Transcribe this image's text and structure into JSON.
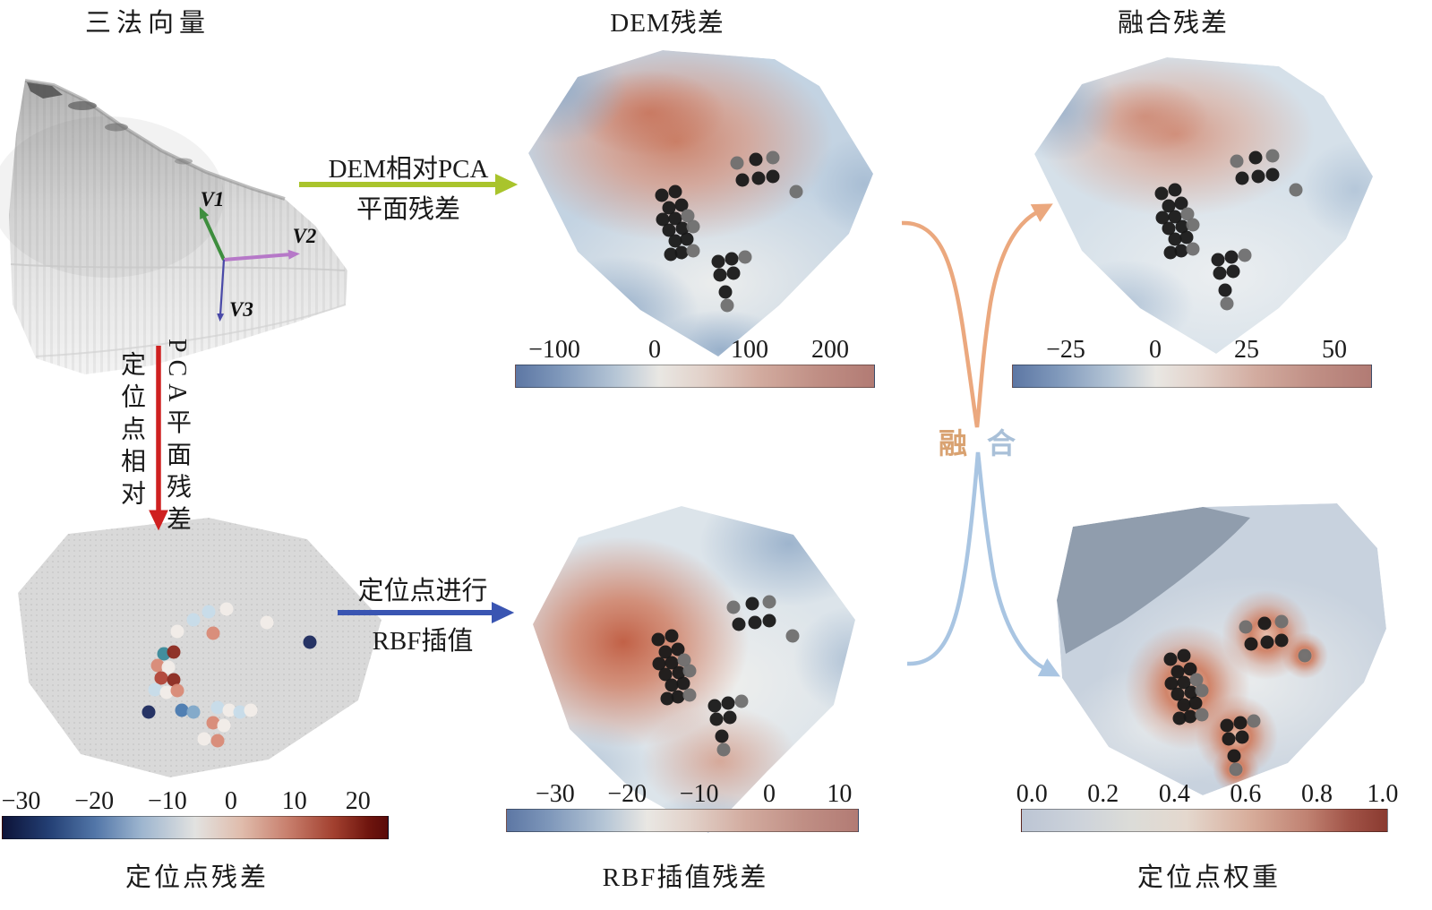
{
  "figure": {
    "titles": {
      "normal_vectors": "三法向量",
      "dem_residual": "DEM残差",
      "fusion_residual": "融合残差"
    },
    "captions": {
      "anchor_residual": "定位点残差",
      "rbf_residual": "RBF插值残差",
      "anchor_weight": "定位点权重"
    },
    "vector_labels": {
      "v1": "V1",
      "v2": "V2",
      "v3": "V3"
    },
    "flow_labels": {
      "dem_pca_line1": "DEM相对PCA",
      "dem_pca_line2": "平面残差",
      "anchor_pca_left": "定位点相对",
      "anchor_pca_right": "PCA平面残差",
      "rbf_line1": "定位点进行",
      "rbf_line2": "RBF插值",
      "fusion_left": "融",
      "fusion_right": "合"
    },
    "colors": {
      "dem_arrow": "#a9c42c",
      "anchor_arrow": "#cf2020",
      "rbf_arrow": "#3a55b2",
      "fusion_arrow_top": "#eba87e",
      "fusion_arrow_bottom": "#a9c5e2",
      "v1": "#3e8e3e",
      "v2": "#b678c8",
      "v3": "#4949a8"
    }
  },
  "colorbars": {
    "dem": {
      "ticks": [
        {
          "label": "−100",
          "x": 11
        },
        {
          "label": "0",
          "x": 39
        },
        {
          "label": "100",
          "x": 65.5
        },
        {
          "label": "200",
          "x": 88
        }
      ]
    },
    "fusion": {
      "ticks": [
        {
          "label": "−25",
          "x": 15
        },
        {
          "label": "0",
          "x": 40
        },
        {
          "label": "25",
          "x": 65.5
        },
        {
          "label": "50",
          "x": 90
        }
      ]
    },
    "anchor": {
      "ticks": [
        {
          "label": "−30",
          "x": 5
        },
        {
          "label": "−20",
          "x": 24
        },
        {
          "label": "−10",
          "x": 43
        },
        {
          "label": "0",
          "x": 59.5
        },
        {
          "label": "10",
          "x": 76
        },
        {
          "label": "20",
          "x": 92.5
        }
      ]
    },
    "rbf": {
      "ticks": [
        {
          "label": "−30",
          "x": 14
        },
        {
          "label": "−20",
          "x": 34.5
        },
        {
          "label": "−10",
          "x": 55
        },
        {
          "label": "0",
          "x": 75
        },
        {
          "label": "10",
          "x": 95
        }
      ]
    },
    "weight": {
      "ticks": [
        {
          "label": "0.0",
          "x": 3
        },
        {
          "label": "0.2",
          "x": 22.5
        },
        {
          "label": "0.4",
          "x": 42
        },
        {
          "label": "0.6",
          "x": 61.5
        },
        {
          "label": "0.8",
          "x": 81
        },
        {
          "label": "1.0",
          "x": 99
        }
      ]
    }
  },
  "palette": [
    "#181818",
    "#6f6f6f",
    "#c7dcea",
    "#f2ede9",
    "#d98a76",
    "#8c2a20",
    "#1c2a5e",
    "#4a7ab0",
    "#7fa8c9",
    "#3a8a9a",
    "#b24438"
  ],
  "anchors": [
    [
      253,
      136,
      1
    ],
    [
      274,
      132,
      0
    ],
    [
      293,
      130,
      1
    ],
    [
      259,
      155,
      0
    ],
    [
      277,
      153,
      0
    ],
    [
      293,
      151,
      0
    ],
    [
      319,
      168,
      1
    ],
    [
      169,
      172,
      0
    ],
    [
      184,
      168,
      0
    ],
    [
      177,
      186,
      0
    ],
    [
      191,
      183,
      0
    ],
    [
      170,
      199,
      0
    ],
    [
      184,
      198,
      0
    ],
    [
      198,
      195,
      1
    ],
    [
      177,
      211,
      0
    ],
    [
      192,
      209,
      0
    ],
    [
      204,
      207,
      1
    ],
    [
      184,
      223,
      0
    ],
    [
      197,
      221,
      0
    ],
    [
      191,
      236,
      0
    ],
    [
      204,
      234,
      1
    ],
    [
      179,
      238,
      0
    ],
    [
      232,
      246,
      0
    ],
    [
      247,
      243,
      0
    ],
    [
      262,
      241,
      1
    ],
    [
      234,
      261,
      0
    ],
    [
      249,
      259,
      0
    ],
    [
      240,
      280,
      0
    ],
    [
      242,
      295,
      1
    ]
  ],
  "scatter": [
    [
      225,
      113,
      2
    ],
    [
      245,
      110,
      3
    ],
    [
      208,
      122,
      2
    ],
    [
      190,
      135,
      3
    ],
    [
      230,
      137,
      4
    ],
    [
      290,
      125,
      3
    ],
    [
      338,
      147,
      6
    ],
    [
      175,
      160,
      9
    ],
    [
      186,
      158,
      5
    ],
    [
      168,
      173,
      4
    ],
    [
      180,
      175,
      3
    ],
    [
      172,
      187,
      10
    ],
    [
      186,
      189,
      5
    ],
    [
      165,
      200,
      2
    ],
    [
      178,
      203,
      3
    ],
    [
      190,
      201,
      4
    ],
    [
      158,
      225,
      6
    ],
    [
      195,
      223,
      7
    ],
    [
      208,
      225,
      8
    ],
    [
      235,
      220,
      2
    ],
    [
      248,
      223,
      3
    ],
    [
      260,
      225,
      2
    ],
    [
      272,
      223,
      3
    ],
    [
      230,
      237,
      4
    ],
    [
      242,
      240,
      3
    ],
    [
      220,
      255,
      3
    ],
    [
      235,
      257,
      4
    ]
  ]
}
